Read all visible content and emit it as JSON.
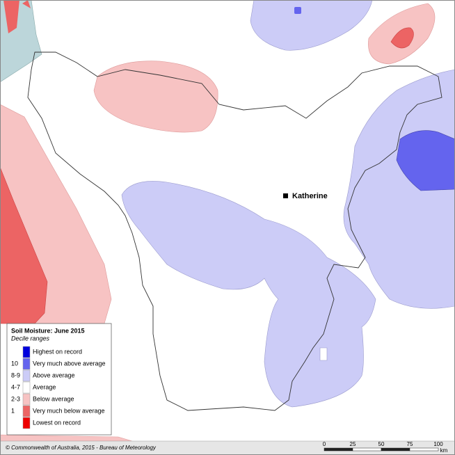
{
  "map": {
    "place": "Katherine",
    "legend": {
      "title": "Soil Moisture: June 2015",
      "subtitle": "Decile ranges",
      "items": [
        {
          "decile": "",
          "label": "Highest on record",
          "color": "#0000dd"
        },
        {
          "decile": "10",
          "label": "Very much above average",
          "color": "#6464ee"
        },
        {
          "decile": "8-9",
          "label": "Above average",
          "color": "#ccccf7"
        },
        {
          "decile": "4-7",
          "label": "Average",
          "color": "#ffffff"
        },
        {
          "decile": "2-3",
          "label": "Below average",
          "color": "#f7c3c3"
        },
        {
          "decile": "1",
          "label": "Very much below average",
          "color": "#ec6464"
        },
        {
          "decile": "",
          "label": "Lowest on record",
          "color": "#ee0000"
        }
      ]
    },
    "footer": "© Commonwealth of Australia, 2015 - Bureau of Meteorology",
    "scale": {
      "ticks": [
        0,
        25,
        50,
        75,
        100
      ],
      "unit": "km"
    }
  }
}
